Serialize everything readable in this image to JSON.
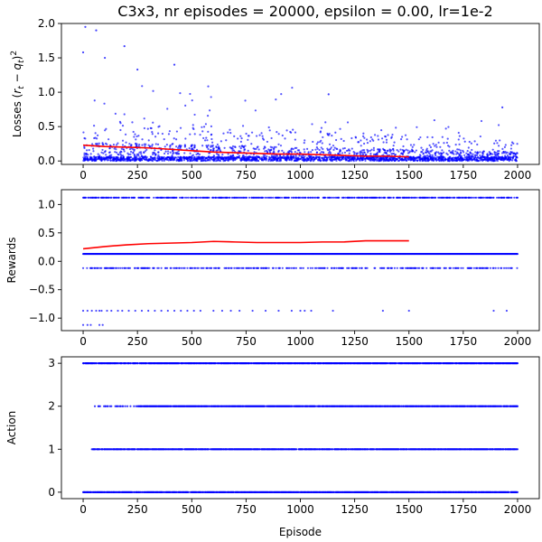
{
  "title": "C3x3, nr episodes = 20000, epsilon = 0.00, lr=1e-2",
  "colors": {
    "points": "#0000ff",
    "smooth": "#ff0000",
    "axes": "#000000",
    "background": "#ffffff"
  },
  "chart_data": [
    {
      "type": "scatter",
      "title": "C3x3, nr episodes = 20000, epsilon = 0.00, lr=1e-2",
      "ylabel": "Losses (r_t − q_t)²",
      "ylabel_parts": [
        "Losses (",
        "r",
        "t",
        " − ",
        "q",
        "t",
        ")",
        "2"
      ],
      "xlabel": "",
      "xlim": [
        -100,
        2100
      ],
      "ylim": [
        -0.05,
        2.0
      ],
      "xticks": [
        0,
        250,
        500,
        750,
        1000,
        1250,
        1500,
        1750,
        2000
      ],
      "yticks": [
        0.0,
        0.5,
        1.0,
        1.5,
        2.0
      ],
      "ytick_labels": [
        "0.0",
        "0.5",
        "1.0",
        "1.5",
        "2.0"
      ],
      "grid": false,
      "series": [
        {
          "kind": "scatter",
          "x_range": [
            0,
            2000
          ],
          "marker_color": "#0000ff",
          "description_values": {
            "dense_band": [
              0.0,
              0.3
            ],
            "outliers_max": 1.95
          },
          "notable_points": [
            [
              10,
              1.95
            ],
            [
              60,
              1.9
            ],
            [
              190,
              1.67
            ],
            [
              0,
              1.58
            ],
            [
              100,
              1.5
            ],
            [
              420,
              1.4
            ],
            [
              250,
              1.33
            ],
            [
              1130,
              0.97
            ],
            [
              1930,
              0.78
            ]
          ]
        },
        {
          "kind": "line",
          "color": "#ff0000",
          "x": [
            0,
            100,
            200,
            300,
            400,
            500,
            600,
            700,
            800,
            900,
            1000,
            1100,
            1200,
            1300,
            1400,
            1500
          ],
          "y": [
            0.23,
            0.21,
            0.2,
            0.19,
            0.17,
            0.15,
            0.13,
            0.12,
            0.11,
            0.1,
            0.1,
            0.09,
            0.08,
            0.07,
            0.07,
            0.06
          ]
        }
      ]
    },
    {
      "type": "scatter",
      "ylabel": "Rewards",
      "xlabel": "",
      "xlim": [
        -100,
        2100
      ],
      "ylim": [
        -1.22,
        1.26
      ],
      "xticks": [
        0,
        250,
        500,
        750,
        1000,
        1250,
        1500,
        1750,
        2000
      ],
      "yticks": [
        -1.0,
        -0.5,
        0.0,
        0.5,
        1.0
      ],
      "ytick_labels": [
        "−1.0",
        "−0.5",
        "0.0",
        "0.5",
        "1.0"
      ],
      "grid": false,
      "series": [
        {
          "kind": "scatter",
          "x_range": [
            0,
            2000
          ],
          "marker_color": "#0000ff",
          "levels": [
            1.12,
            0.13,
            -0.12,
            -0.87,
            -1.12
          ]
        },
        {
          "kind": "line",
          "color": "#ff0000",
          "x": [
            0,
            100,
            200,
            300,
            400,
            500,
            600,
            700,
            800,
            900,
            1000,
            1100,
            1200,
            1300,
            1400,
            1500
          ],
          "y": [
            0.22,
            0.26,
            0.29,
            0.31,
            0.32,
            0.33,
            0.35,
            0.34,
            0.33,
            0.33,
            0.33,
            0.34,
            0.34,
            0.36,
            0.36,
            0.36
          ]
        }
      ]
    },
    {
      "type": "scatter",
      "ylabel": "Action",
      "xlabel": "Episode",
      "xlim": [
        -100,
        2100
      ],
      "ylim": [
        -0.15,
        3.15
      ],
      "xticks": [
        0,
        250,
        500,
        750,
        1000,
        1250,
        1500,
        1750,
        2000
      ],
      "yticks": [
        0,
        1,
        2,
        3
      ],
      "ytick_labels": [
        "0",
        "1",
        "2",
        "3"
      ],
      "grid": false,
      "series": [
        {
          "kind": "scatter",
          "x_range": [
            0,
            2000
          ],
          "marker_color": "#0000ff",
          "levels": [
            0,
            1,
            2,
            3
          ]
        }
      ]
    }
  ]
}
